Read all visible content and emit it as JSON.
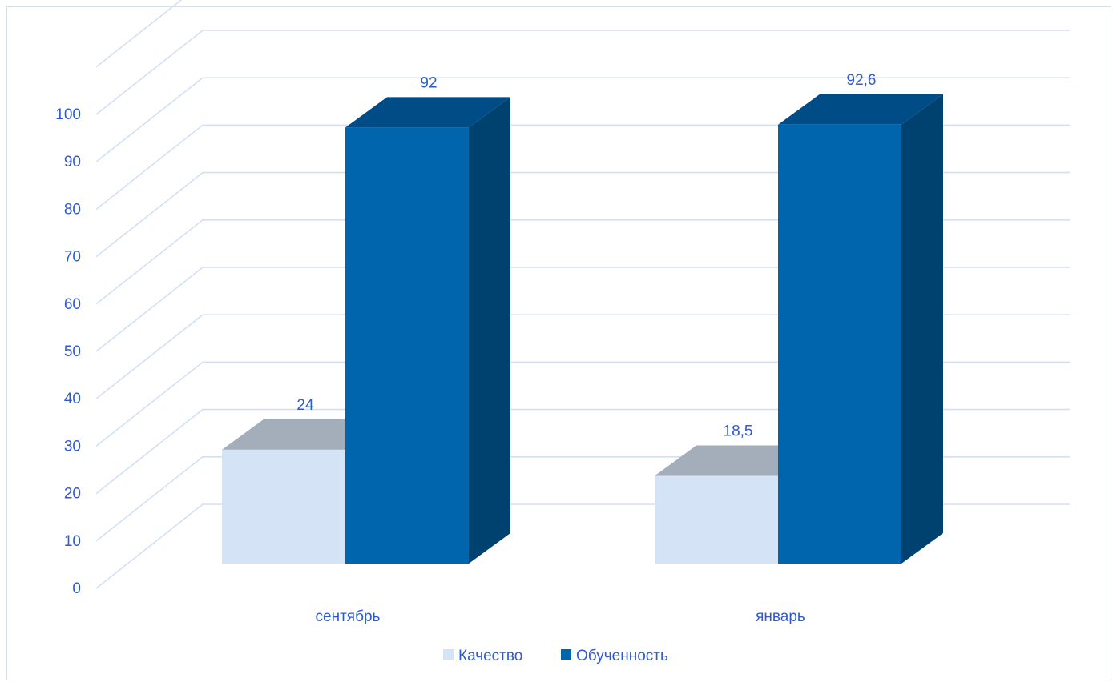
{
  "chart_data": {
    "type": "bar",
    "style": "3d-clustered-column",
    "categories": [
      "сентябрь",
      "январь"
    ],
    "series": [
      {
        "name": "Качество",
        "values": [
          24,
          18.5
        ],
        "labels": [
          "24",
          "18,5"
        ]
      },
      {
        "name": "Обученность",
        "values": [
          92,
          92.6
        ],
        "labels": [
          "92",
          "92,6"
        ]
      }
    ],
    "y_ticks": [
      "0",
      "10",
      "20",
      "30",
      "40",
      "50",
      "60",
      "70",
      "80",
      "90",
      "100"
    ],
    "ylim": [
      0,
      110
    ],
    "grid": true,
    "legend_position": "bottom",
    "title": "",
    "xlabel": "",
    "ylabel": ""
  },
  "colors": {
    "text": "#2e5bd0",
    "grid": "#d3e0f4",
    "frame": "#d6dde8",
    "series": [
      {
        "front": "#d5e3f6",
        "top": "#a3aeba",
        "side": "#b9c7d6"
      },
      {
        "front": "#0065ad",
        "top": "#004c86",
        "side": "#00426f"
      }
    ]
  }
}
